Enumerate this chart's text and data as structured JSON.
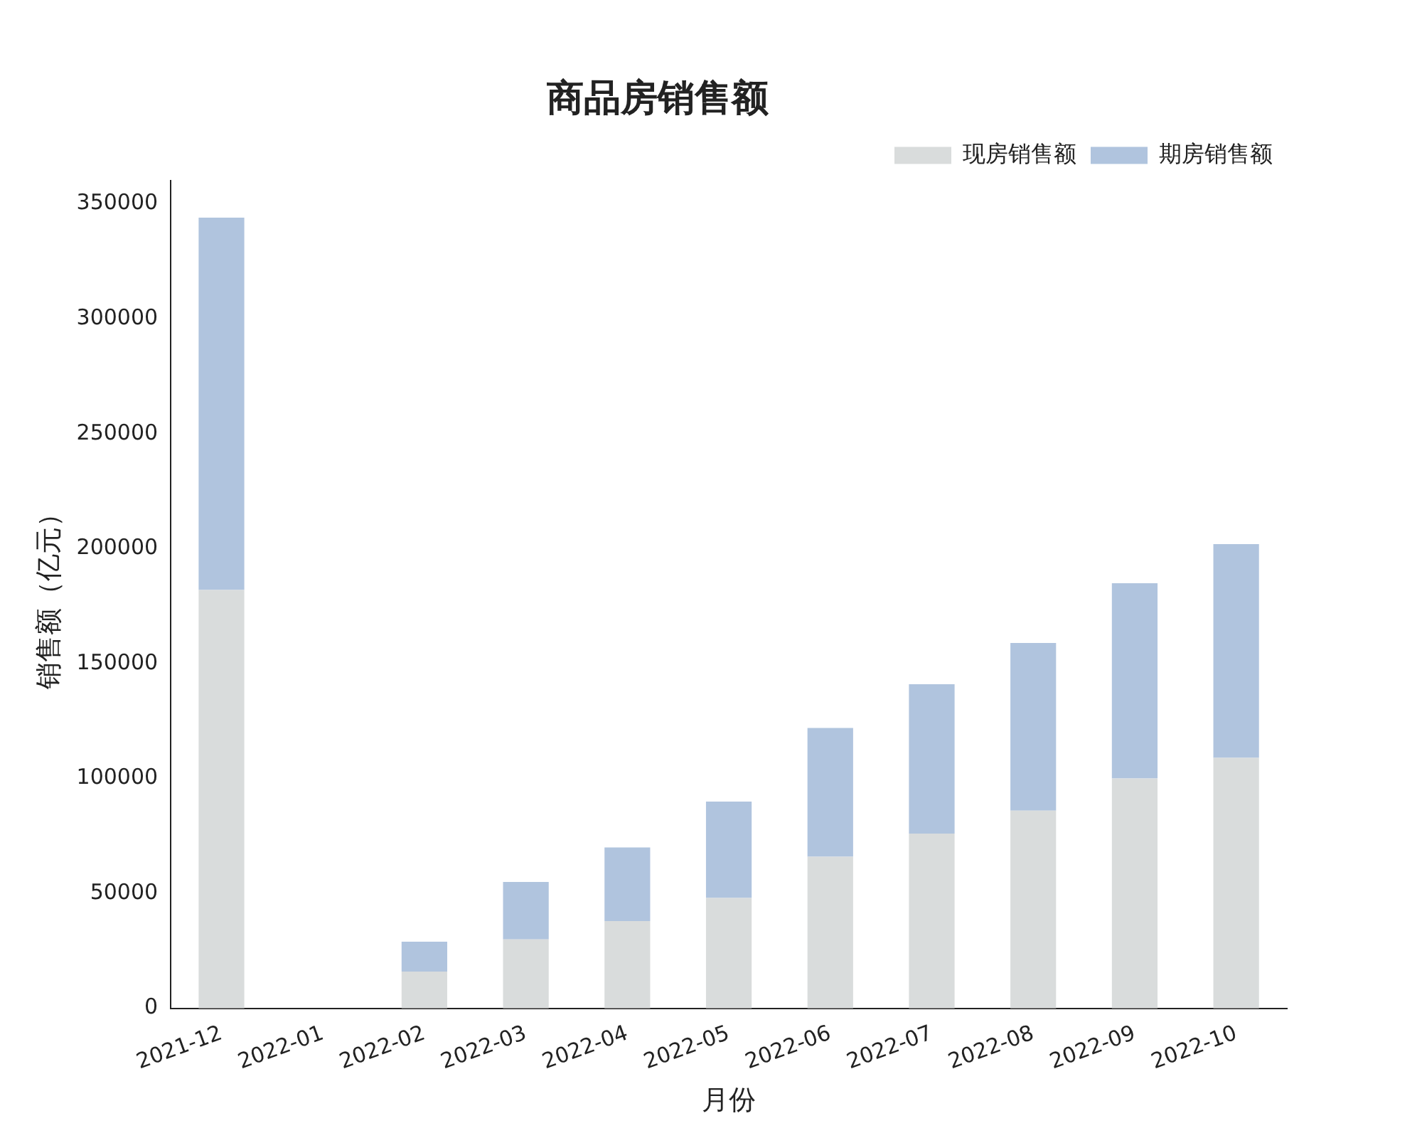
{
  "chart_data": {
    "type": "bar",
    "title": "商品房销售额",
    "xlabel": "月份",
    "ylabel": "销售额（亿元）",
    "stacked": true,
    "legend": "top right",
    "grid": false,
    "categories": [
      "2021-12",
      "2022-01",
      "2022-02",
      "2022-03",
      "2022-04",
      "2022-05",
      "2022-06",
      "2022-07",
      "2022-08",
      "2022-09",
      "2022-10"
    ],
    "series": [
      {
        "name": "现房销售额",
        "color": "#d9dcdc",
        "values": [
          182000,
          0,
          16000,
          30000,
          38000,
          48000,
          66000,
          76000,
          86000,
          100000,
          109000
        ]
      },
      {
        "name": "期房销售额",
        "color": "#b0c4de",
        "values": [
          162000,
          0,
          13000,
          25000,
          32000,
          42000,
          56000,
          65000,
          73000,
          85000,
          93000
        ]
      }
    ],
    "ylim": [
      0,
      360000
    ],
    "yticks": [
      0,
      50000,
      100000,
      150000,
      200000,
      250000,
      300000,
      350000
    ]
  }
}
